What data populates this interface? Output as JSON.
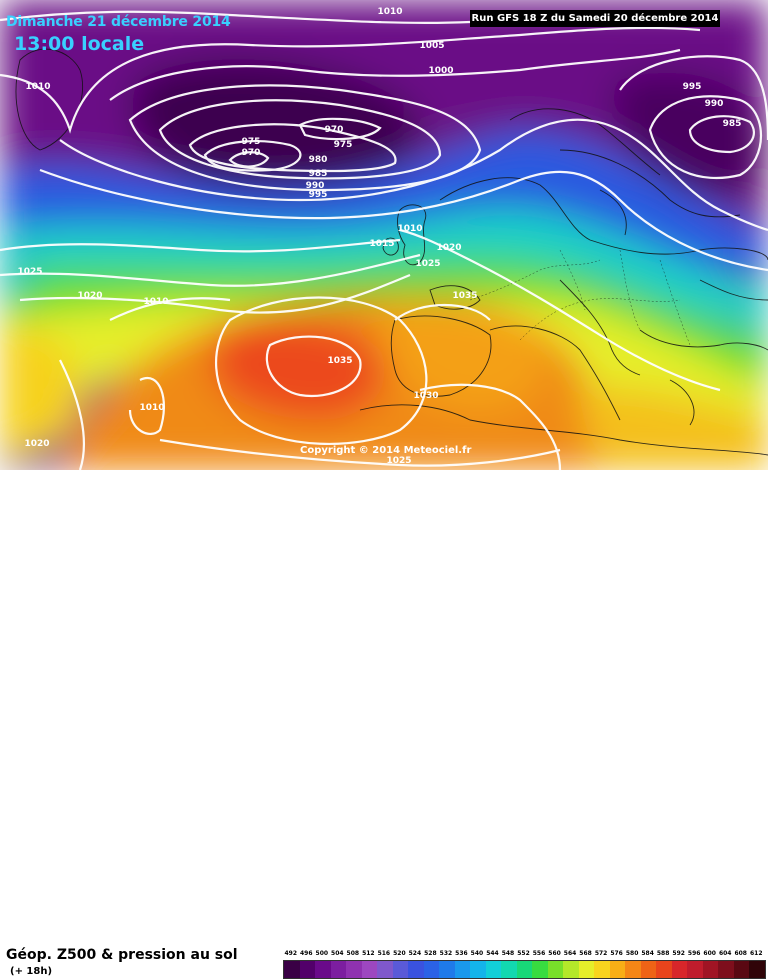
{
  "header": {
    "date": "Dimanche 21 décembre 2014",
    "time": "13:00 locale",
    "run": "Run GFS 18 Z du Samedi 20 décembre 2014"
  },
  "copyright": "Copyright © 2014 Meteociel.fr",
  "footer": {
    "title": "Géop. Z500 & pression au sol",
    "subtitle": "(+ 18h)"
  },
  "legend": {
    "values": [
      "492",
      "496",
      "500",
      "504",
      "508",
      "512",
      "516",
      "520",
      "524",
      "528",
      "532",
      "536",
      "540",
      "544",
      "548",
      "552",
      "556",
      "560",
      "564",
      "568",
      "572",
      "576",
      "580",
      "584",
      "588",
      "592",
      "596",
      "600",
      "604",
      "608",
      "612"
    ],
    "colors": [
      "#3a0045",
      "#52006a",
      "#6a0a8a",
      "#7c1ea0",
      "#8f32b0",
      "#9d47c0",
      "#7f58cc",
      "#5a5ad8",
      "#3a52e0",
      "#2b62e6",
      "#1f7ae9",
      "#1a98ec",
      "#14b4ea",
      "#12cfd8",
      "#12d8b0",
      "#18d878",
      "#38dc40",
      "#78e02a",
      "#b4e82a",
      "#e6ee2a",
      "#f8d41e",
      "#f8ae16",
      "#f48616",
      "#ee6316",
      "#e8441c",
      "#d8262a",
      "#c01c2c",
      "#a01424",
      "#7e0e1c",
      "#5a0812",
      "#300408"
    ]
  },
  "isobars": [
    {
      "label": "1010",
      "pos": [
        390,
        14
      ]
    },
    {
      "label": "1005",
      "pos": [
        432,
        48
      ]
    },
    {
      "label": "1000",
      "pos": [
        441,
        73
      ]
    },
    {
      "label": "1010",
      "pos": [
        38,
        89
      ]
    },
    {
      "label": "995",
      "pos": [
        692,
        89
      ]
    },
    {
      "label": "990",
      "pos": [
        714,
        106
      ]
    },
    {
      "label": "985",
      "pos": [
        732,
        126
      ]
    },
    {
      "label": "970",
      "pos": [
        334,
        132
      ]
    },
    {
      "label": "975",
      "pos": [
        343,
        147
      ]
    },
    {
      "label": "975",
      "pos": [
        251,
        144
      ]
    },
    {
      "label": "970",
      "pos": [
        251,
        155
      ]
    },
    {
      "label": "980",
      "pos": [
        318,
        162
      ]
    },
    {
      "label": "985",
      "pos": [
        318,
        176
      ]
    },
    {
      "label": "990",
      "pos": [
        315,
        188
      ]
    },
    {
      "label": "995",
      "pos": [
        318,
        197
      ]
    },
    {
      "label": "1010",
      "pos": [
        410,
        231
      ]
    },
    {
      "label": "1015",
      "pos": [
        382,
        246
      ]
    },
    {
      "label": "1020",
      "pos": [
        449,
        250
      ]
    },
    {
      "label": "1025",
      "pos": [
        428,
        266
      ]
    },
    {
      "label": "1025",
      "pos": [
        30,
        274
      ]
    },
    {
      "label": "1020",
      "pos": [
        90,
        298
      ]
    },
    {
      "label": "1010",
      "pos": [
        156,
        304
      ]
    },
    {
      "label": "1035",
      "pos": [
        465,
        298
      ]
    },
    {
      "label": "1035",
      "pos": [
        340,
        363
      ]
    },
    {
      "label": "1030",
      "pos": [
        426,
        398
      ]
    },
    {
      "label": "1010",
      "pos": [
        152,
        410
      ]
    },
    {
      "label": "1020",
      "pos": [
        37,
        446
      ]
    },
    {
      "label": "1025",
      "pos": [
        399,
        463
      ]
    }
  ]
}
